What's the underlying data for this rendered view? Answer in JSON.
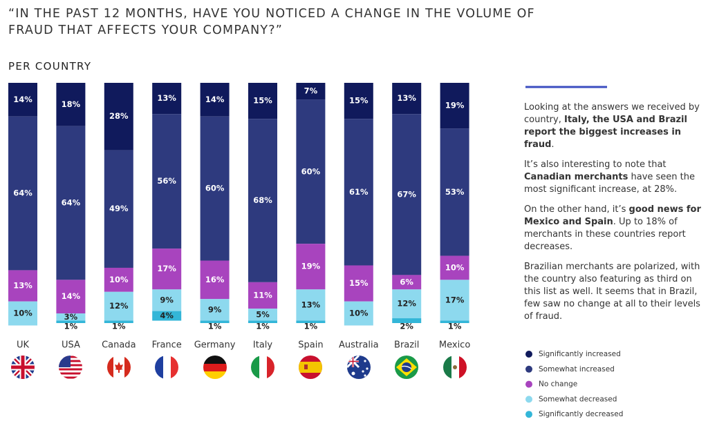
{
  "chart_data": {
    "type": "stacked_bar",
    "title": "“IN THE PAST 12 MONTHS, HAVE YOU NOTICED A CHANGE IN THE VOLUME OF FRAUD THAT AFFECTS YOUR COMPANY?”",
    "subtitle": "PER COUNTRY",
    "categories": [
      "UK",
      "USA",
      "Canada",
      "France",
      "Germany",
      "Italy",
      "Spain",
      "Australia",
      "Brazil",
      "Mexico"
    ],
    "ylim": [
      0,
      100
    ],
    "series": [
      {
        "name": "Significantly increased",
        "color": "#101a5c",
        "values": [
          14,
          18,
          28,
          13,
          14,
          15,
          7,
          15,
          13,
          19
        ],
        "value_labels": [
          "14%",
          "18%",
          "28%",
          "13%",
          "14%",
          "15%",
          "7%",
          "15%",
          "13%",
          "19%"
        ]
      },
      {
        "name": "Somewhat increased",
        "color": "#2e3a7e",
        "values": [
          64,
          64,
          49,
          56,
          60,
          68,
          60,
          61,
          67,
          53
        ],
        "value_labels": [
          "64%",
          "64%",
          "49%",
          "56%",
          "60%",
          "68%",
          "60%",
          "61%",
          "67%",
          "53%"
        ]
      },
      {
        "name": "No change",
        "color": "#a844be",
        "values": [
          13,
          14,
          10,
          17,
          16,
          11,
          19,
          15,
          6,
          10
        ],
        "value_labels": [
          "13%",
          "14%",
          "10%",
          "17%",
          "16%",
          "11%",
          "19%",
          "15%",
          "6%",
          "10%"
        ]
      },
      {
        "name": "Somewhat decreased",
        "color": "#8dd9ee",
        "values": [
          10,
          3,
          12,
          9,
          9,
          5,
          13,
          10,
          12,
          17
        ],
        "value_labels": [
          "10%",
          "3%",
          "12%",
          "9%",
          "9%",
          "5%",
          "13%",
          "10%",
          "12%",
          "17%"
        ]
      },
      {
        "name": "Significantly decreased",
        "color": "#33b6d8",
        "values": [
          0,
          1,
          1,
          4,
          1,
          1,
          1,
          0,
          2,
          1
        ],
        "value_labels": [
          null,
          "1%",
          "1%",
          "4%",
          "1%",
          "1%",
          "1%",
          null,
          "2%",
          "1%"
        ]
      }
    ],
    "commentary": [
      [
        {
          "text": "Looking at the answers we received by country, ",
          "bold": false
        },
        {
          "text": "Italy, the USA and Brazil report the biggest increases in fraud",
          "bold": true
        },
        {
          "text": ".",
          "bold": false
        }
      ],
      [
        {
          "text": "It’s also interesting to note that ",
          "bold": false
        },
        {
          "text": "Canadian merchants",
          "bold": true
        },
        {
          "text": " have seen the most significant increase, at 28%.",
          "bold": false
        }
      ],
      [
        {
          "text": "On the other hand, it’s ",
          "bold": false
        },
        {
          "text": "good news for Mexico and Spain",
          "bold": true
        },
        {
          "text": ". Up to 18% of merchants in these countries report decreases.",
          "bold": false
        }
      ],
      [
        {
          "text": "Brazilian merchants are polarized, with the country also featuring as third on this list as well. It seems that in Brazil, few saw no change at all to their levels of fraud.",
          "bold": false
        }
      ]
    ]
  }
}
